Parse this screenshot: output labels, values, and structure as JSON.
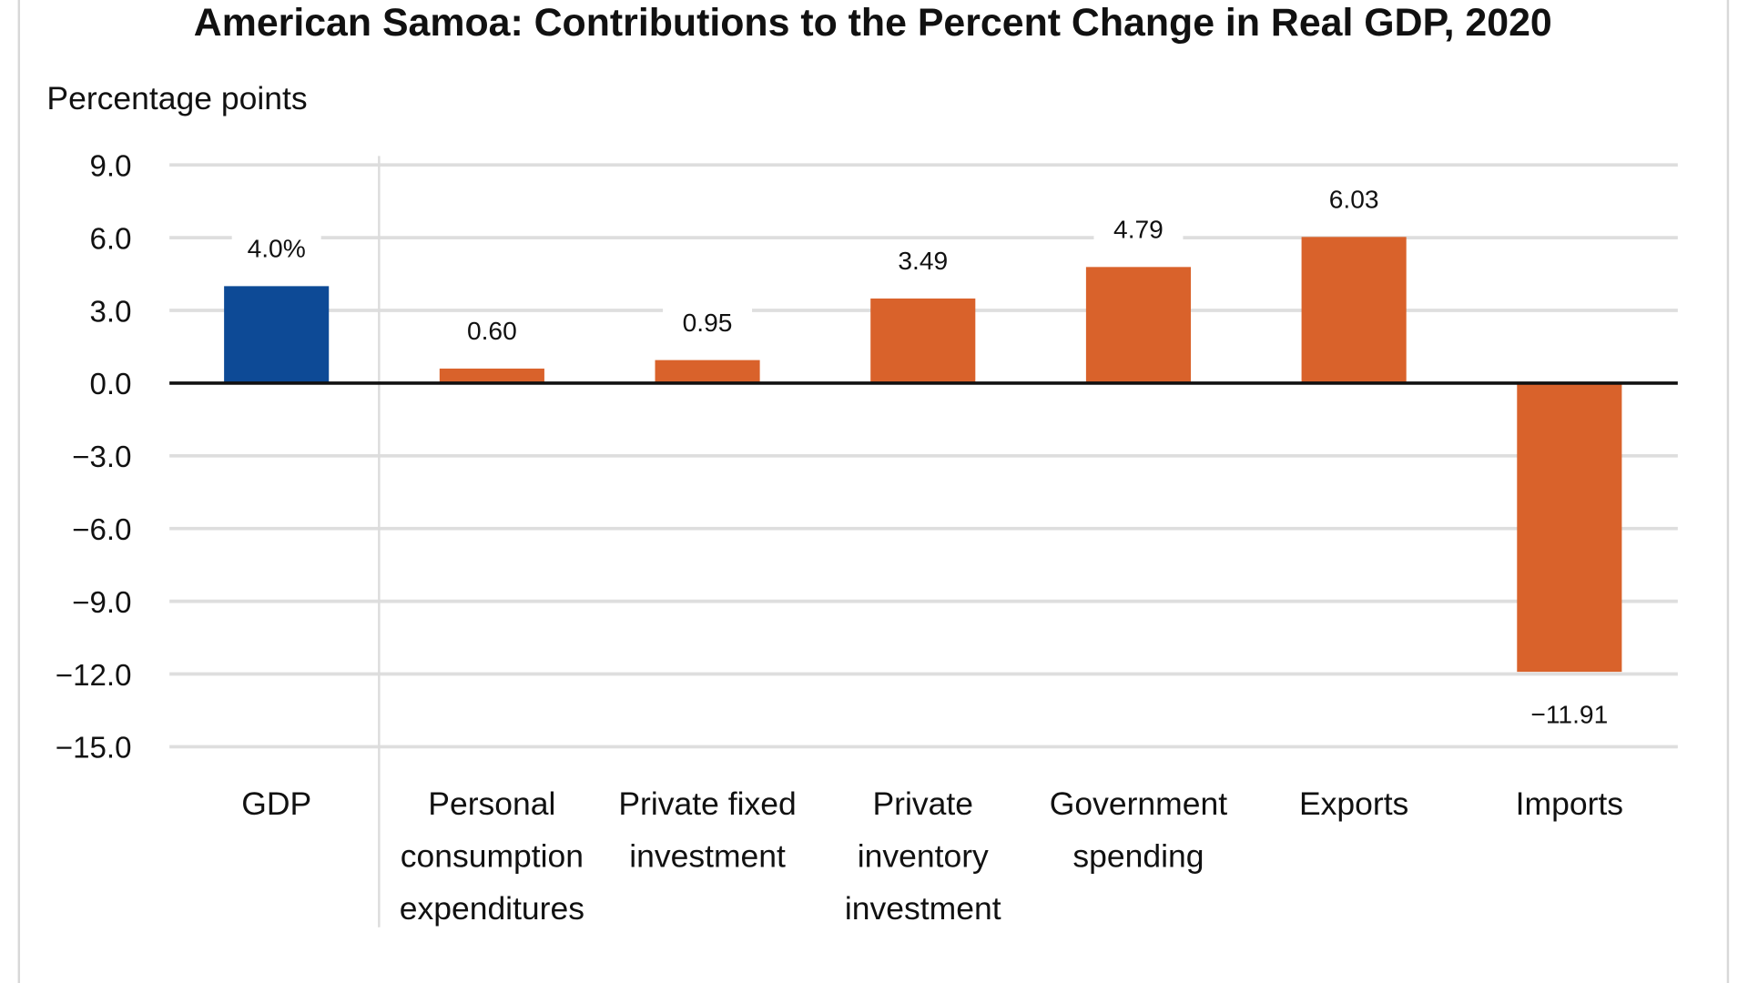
{
  "chart_data": {
    "type": "bar",
    "title": "American Samoa: Contributions to the Percent Change in Real GDP, 2020",
    "ylabel": "Percentage points",
    "xlabel": "",
    "ylim": [
      -15,
      9
    ],
    "yticks": [
      9,
      6,
      3,
      0,
      -3,
      -6,
      -9,
      -12,
      -15
    ],
    "ytick_labels": [
      "9.0",
      "6.0",
      "3.0",
      "0.0",
      "−3.0",
      "−6.0",
      "−9.0",
      "−12.0",
      "−15.0"
    ],
    "grid": true,
    "categories": [
      [
        "GDP"
      ],
      [
        "Personal",
        "consumption",
        "expenditures"
      ],
      [
        "Private fixed",
        "investment"
      ],
      [
        "Private",
        "inventory",
        "investment"
      ],
      [
        "Government",
        "spending"
      ],
      [
        "Exports"
      ],
      [
        "Imports"
      ]
    ],
    "values": [
      4.0,
      0.6,
      0.95,
      3.49,
      4.79,
      6.03,
      -11.91
    ],
    "data_labels": [
      "4.0%",
      "0.60",
      "0.95",
      "3.49",
      "4.79",
      "6.03",
      "−11.91"
    ],
    "colors": {
      "gdp": "#0d4a96",
      "components": "#d9622b",
      "grid": "#dedede",
      "zero_line": "#111111"
    }
  }
}
